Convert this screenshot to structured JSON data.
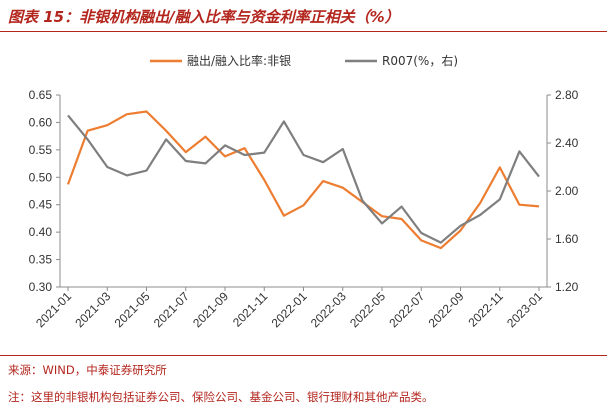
{
  "title": "图表 15：非银机构融出/融入比率与资金利率正相关（%）",
  "source": "来源：WIND，中泰证券研究所",
  "footnote": "注：这里的非银机构包括证券公司、保险公司、基金公司、银行理财和其他产品类。",
  "colors": {
    "accent": "#b3261e",
    "series1": "#ed7d31",
    "series2": "#7f7f7f"
  },
  "chart_data": {
    "type": "line",
    "title": "",
    "legend": {
      "placement": "top"
    },
    "grid": false,
    "x": [
      "2021-01",
      "2021-02",
      "2021-03",
      "2021-04",
      "2021-05",
      "2021-06",
      "2021-07",
      "2021-08",
      "2021-09",
      "2021-10",
      "2021-11",
      "2021-12",
      "2022-01",
      "2022-02",
      "2022-03",
      "2022-04",
      "2022-05",
      "2022-06",
      "2022-07",
      "2022-08",
      "2022-09",
      "2022-10",
      "2022-11",
      "2022-12",
      "2023-01"
    ],
    "x_tick_labels": [
      "2021-01",
      "2021-03",
      "2021-05",
      "2021-07",
      "2021-09",
      "2021-11",
      "2022-01",
      "2022-03",
      "2022-05",
      "2022-07",
      "2022-09",
      "2022-11",
      "2023-01"
    ],
    "y_left": {
      "ylim": [
        0.3,
        0.65
      ],
      "ticks": [
        "0.30",
        "0.35",
        "0.40",
        "0.45",
        "0.50",
        "0.55",
        "0.60",
        "0.65"
      ]
    },
    "y_right": {
      "ylim": [
        1.2,
        2.8
      ],
      "ticks": [
        "1.20",
        "1.60",
        "2.00",
        "2.40",
        "2.80"
      ]
    },
    "series": [
      {
        "name": "融出/融入比率:非银",
        "axis": "left",
        "color": "#ed7d31",
        "values": [
          0.487,
          0.585,
          0.595,
          0.615,
          0.62,
          0.585,
          0.546,
          0.574,
          0.538,
          0.553,
          0.495,
          0.43,
          0.449,
          0.493,
          0.481,
          0.455,
          0.429,
          0.424,
          0.385,
          0.371,
          0.403,
          0.453,
          0.518,
          0.45,
          0.447
        ]
      },
      {
        "name": "R007(%，右)",
        "axis": "right",
        "color": "#7f7f7f",
        "values": [
          2.63,
          2.43,
          2.2,
          2.13,
          2.17,
          2.43,
          2.25,
          2.23,
          2.38,
          2.3,
          2.32,
          2.58,
          2.3,
          2.24,
          2.35,
          1.92,
          1.73,
          1.87,
          1.65,
          1.57,
          1.71,
          1.8,
          1.93,
          2.33,
          2.12
        ]
      }
    ]
  }
}
